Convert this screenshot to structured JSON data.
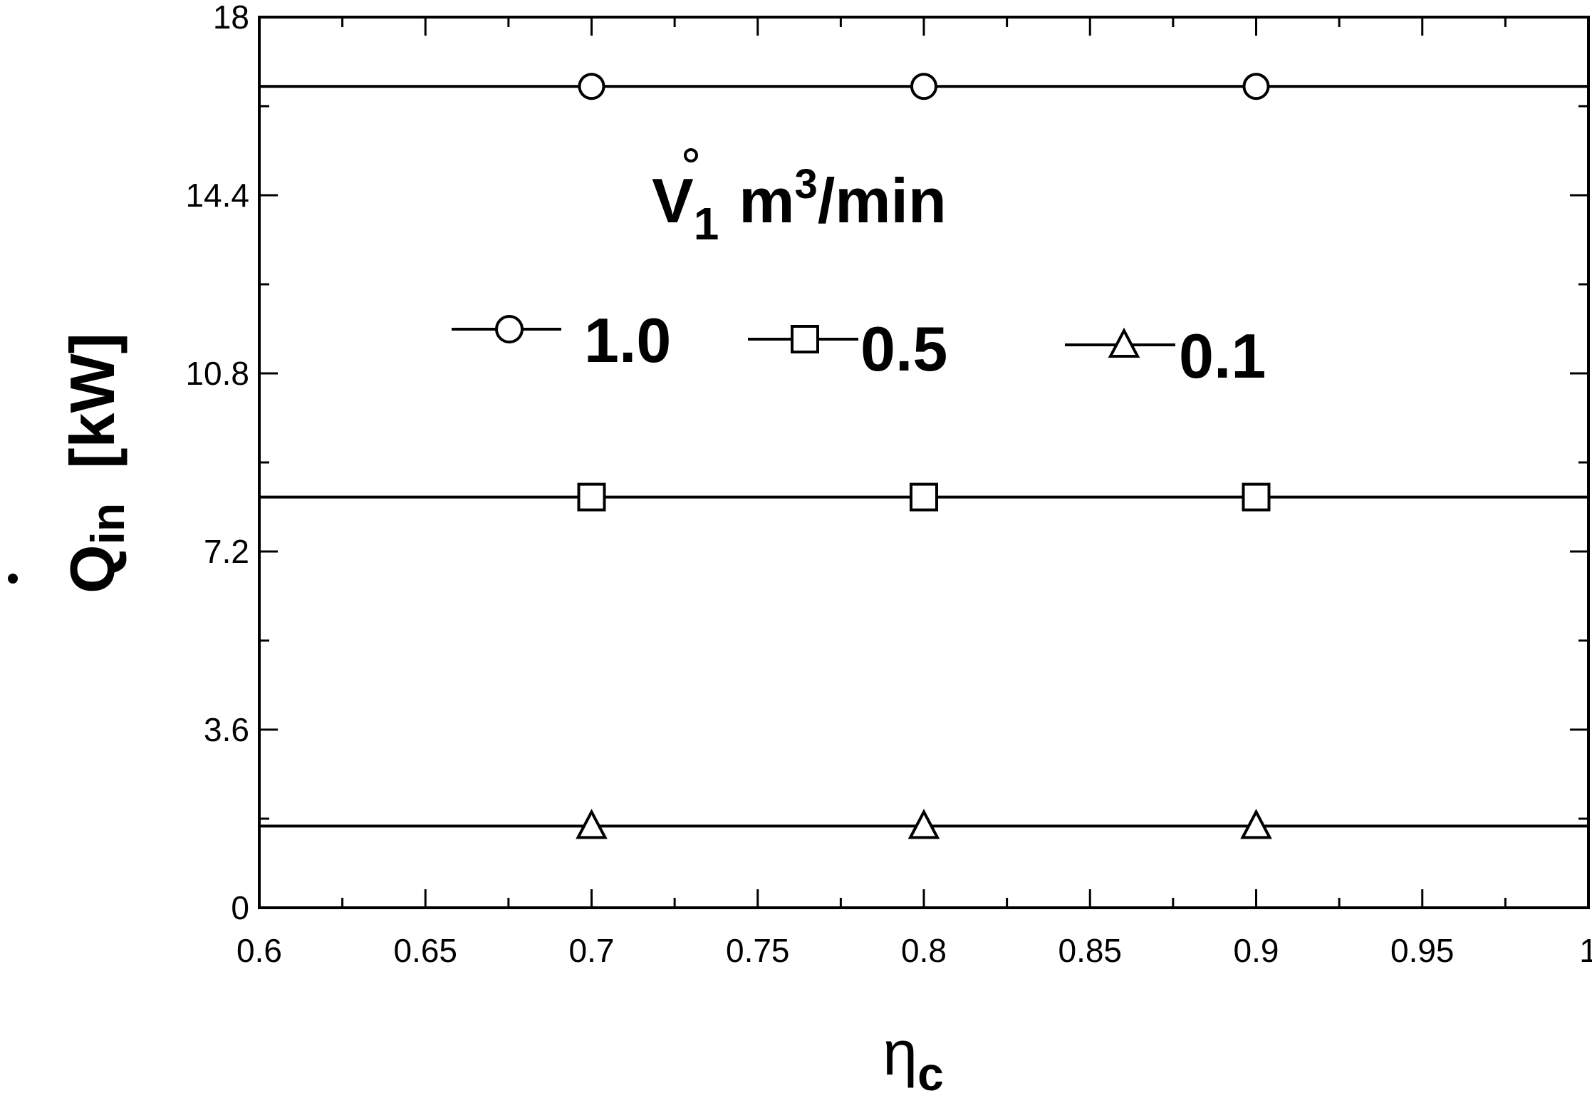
{
  "chart_data": {
    "type": "line",
    "xlabel": "η",
    "xlabel_sub": "c",
    "ylabel": "Q",
    "ylabel_sub": "in",
    "ylabel_unit": "[kW]",
    "xlim": [
      0.6,
      1.0
    ],
    "ylim": [
      0,
      18
    ],
    "x_ticks": [
      "0.6",
      "0.65",
      "0.7",
      "0.75",
      "0.8",
      "0.85",
      "0.9",
      "0.95",
      "1"
    ],
    "y_ticks": [
      "0",
      "3.6",
      "7.2",
      "10.8",
      "14.4",
      "18"
    ],
    "legend": {
      "title_var": "V",
      "title_sub": "1",
      "title_unit": "m",
      "title_unit_sup": "3",
      "title_unit_rest": "/min",
      "placement": "top-center"
    },
    "series": [
      {
        "name": "1.0",
        "marker": "circle",
        "x": [
          0.7,
          0.8,
          0.9
        ],
        "values": [
          16.6,
          16.6,
          16.6
        ]
      },
      {
        "name": "0.5",
        "marker": "square",
        "x": [
          0.7,
          0.8,
          0.9
        ],
        "values": [
          8.3,
          8.3,
          8.3
        ]
      },
      {
        "name": "0.1",
        "marker": "triangle",
        "x": [
          0.7,
          0.8,
          0.9
        ],
        "values": [
          1.65,
          1.65,
          1.65
        ]
      }
    ]
  }
}
